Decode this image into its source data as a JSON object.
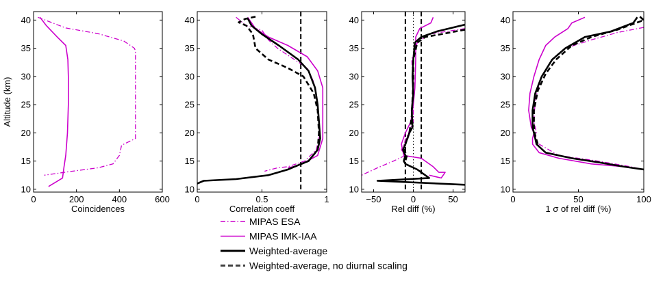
{
  "chart_data": [
    {
      "type": "line",
      "xlabel": "Coincidences",
      "ylabel": "Altitude (km)",
      "xlim": [
        0,
        600
      ],
      "ylim": [
        9.5,
        41.5
      ],
      "xticks": [
        "0",
        "200",
        "400",
        "600"
      ],
      "yticks": [
        "10",
        "15",
        "20",
        "25",
        "30",
        "35",
        "40"
      ],
      "vlines": [],
      "series": [
        {
          "name": "MIPAS ESA",
          "color": "#cc00cc",
          "dash": "dashdot",
          "width": 1.3,
          "points": [
            [
              20,
              40.5
            ],
            [
              150,
              38.6
            ],
            [
              300,
              37.6
            ],
            [
              420,
              36.3
            ],
            [
              470,
              35
            ],
            [
              475,
              34.5
            ],
            [
              475,
              30
            ],
            [
              475,
              25
            ],
            [
              475,
              19
            ],
            [
              410,
              17.8
            ],
            [
              400,
              16
            ],
            [
              370,
              14.5
            ],
            [
              300,
              13.8
            ],
            [
              180,
              13.2
            ],
            [
              50,
              12.5
            ]
          ]
        },
        {
          "name": "MIPAS IMK-IAA",
          "color": "#cc00cc",
          "dash": "solid",
          "width": 1.6,
          "points": [
            [
              30,
              40.5
            ],
            [
              60,
              39
            ],
            [
              110,
              37
            ],
            [
              150,
              35.5
            ],
            [
              160,
              33
            ],
            [
              162,
              30
            ],
            [
              162,
              25
            ],
            [
              158,
              20
            ],
            [
              150,
              16
            ],
            [
              142,
              14
            ],
            [
              135,
              12
            ],
            [
              70,
              10.5
            ]
          ]
        }
      ]
    },
    {
      "type": "line",
      "xlabel": "Correlation coeff",
      "ylabel": "",
      "xlim": [
        0,
        1
      ],
      "ylim": [
        9.5,
        41.5
      ],
      "xticks": [
        "0",
        "0.5",
        "1"
      ],
      "yticks": [
        "10",
        "15",
        "20",
        "25",
        "30",
        "35",
        "40"
      ],
      "vlines": [
        {
          "x": 0.8,
          "style": "dashed",
          "color": "#000000"
        }
      ],
      "series": [
        {
          "name": "MIPAS ESA",
          "color": "#cc00cc",
          "dash": "dashdot",
          "width": 1.3,
          "points": [
            [
              0.3,
              40.5
            ],
            [
              0.38,
              39
            ],
            [
              0.5,
              38.2
            ],
            [
              0.55,
              36.5
            ],
            [
              0.62,
              35
            ],
            [
              0.75,
              33
            ],
            [
              0.85,
              31.5
            ],
            [
              0.9,
              29
            ],
            [
              0.93,
              25
            ],
            [
              0.95,
              20
            ],
            [
              0.92,
              17
            ],
            [
              0.83,
              15
            ],
            [
              0.7,
              14
            ],
            [
              0.62,
              13.8
            ],
            [
              0.52,
              13.2
            ]
          ]
        },
        {
          "name": "MIPAS IMK-IAA",
          "color": "#cc00cc",
          "dash": "solid",
          "width": 1.6,
          "points": [
            [
              0.39,
              40.5
            ],
            [
              0.45,
              38.5
            ],
            [
              0.55,
              37
            ],
            [
              0.7,
              35.5
            ],
            [
              0.85,
              33.5
            ],
            [
              0.93,
              31
            ],
            [
              0.97,
              28
            ],
            [
              0.97,
              24
            ],
            [
              0.97,
              19
            ],
            [
              0.93,
              16
            ],
            [
              0.85,
              15
            ],
            [
              0.78,
              14.2
            ],
            [
              0.7,
              13.8
            ]
          ]
        },
        {
          "name": "Weighted-average",
          "color": "#000000",
          "dash": "solid",
          "width": 2.6,
          "points": [
            [
              0.39,
              40.3
            ],
            [
              0.42,
              39
            ],
            [
              0.5,
              37.5
            ],
            [
              0.63,
              35.5
            ],
            [
              0.78,
              33
            ],
            [
              0.86,
              31
            ],
            [
              0.91,
              28
            ],
            [
              0.93,
              25
            ],
            [
              0.94,
              22
            ],
            [
              0.95,
              19
            ],
            [
              0.93,
              17
            ],
            [
              0.86,
              15
            ],
            [
              0.75,
              14
            ],
            [
              0.7,
              13.5
            ],
            [
              0.55,
              12.5
            ],
            [
              0.3,
              11.8
            ],
            [
              0.05,
              11.5
            ],
            [
              0.0,
              11
            ]
          ]
        },
        {
          "name": "Weighted-average, no diurnal scaling",
          "color": "#000000",
          "dash": "dashed",
          "width": 2.6,
          "points": [
            [
              0.45,
              40.6
            ],
            [
              0.37,
              40.2
            ],
            [
              0.32,
              39.6
            ],
            [
              0.38,
              39
            ],
            [
              0.43,
              37.5
            ],
            [
              0.45,
              35
            ],
            [
              0.55,
              33
            ],
            [
              0.7,
              31.5
            ],
            [
              0.82,
              30
            ],
            [
              0.9,
              27
            ],
            [
              0.93,
              24
            ],
            [
              0.94,
              20
            ],
            [
              0.93,
              17
            ],
            [
              0.86,
              15
            ],
            [
              0.75,
              14
            ]
          ]
        }
      ]
    },
    {
      "type": "line",
      "xlabel": "Rel diff (%)",
      "ylabel": "",
      "xlim": [
        -65,
        65
      ],
      "ylim": [
        9.5,
        41.5
      ],
      "xticks": [
        "−50",
        "0",
        "50"
      ],
      "yticks": [
        "10",
        "15",
        "20",
        "25",
        "30",
        "35",
        "40"
      ],
      "vlines": [
        {
          "x": -10,
          "style": "dashed",
          "color": "#000000"
        },
        {
          "x": 10,
          "style": "dashed",
          "color": "#000000"
        },
        {
          "x": 0,
          "style": "dotted",
          "color": "#000000"
        }
      ],
      "series": [
        {
          "name": "MIPAS ESA",
          "color": "#cc00cc",
          "dash": "dashdot",
          "width": 1.3,
          "points": [
            [
              65,
              38.5
            ],
            [
              20,
              37.5
            ],
            [
              5,
              36
            ],
            [
              -2,
              33
            ],
            [
              0,
              28
            ],
            [
              0,
              22
            ],
            [
              -6,
              20
            ],
            [
              -12,
              18
            ],
            [
              -15,
              17
            ],
            [
              -10,
              16
            ],
            [
              -25,
              15
            ],
            [
              -45,
              13.8
            ],
            [
              -65,
              12.5
            ]
          ]
        },
        {
          "name": "MIPAS IMK-IAA",
          "color": "#cc00cc",
          "dash": "solid",
          "width": 1.6,
          "points": [
            [
              25,
              40.5
            ],
            [
              22,
              39.5
            ],
            [
              8,
              38.5
            ],
            [
              3,
              37
            ],
            [
              3,
              33
            ],
            [
              2,
              28
            ],
            [
              0,
              25
            ],
            [
              -3,
              22
            ],
            [
              -10,
              20
            ],
            [
              -15,
              18
            ],
            [
              -12,
              16
            ],
            [
              10,
              15.5
            ],
            [
              25,
              14
            ],
            [
              32,
              13
            ],
            [
              40,
              13
            ],
            [
              35,
              12
            ],
            [
              20,
              12.5
            ]
          ]
        },
        {
          "name": "Weighted-average",
          "color": "#000000",
          "dash": "solid",
          "width": 2.6,
          "points": [
            [
              65,
              39.2
            ],
            [
              30,
              38
            ],
            [
              10,
              37
            ],
            [
              2,
              36
            ],
            [
              0,
              33
            ],
            [
              -1,
              30
            ],
            [
              0,
              27
            ],
            [
              -2,
              24
            ],
            [
              -1,
              21
            ],
            [
              -5,
              20
            ],
            [
              -10,
              18
            ],
            [
              -13,
              17
            ],
            [
              -10,
              16
            ],
            [
              -12,
              15
            ],
            [
              -10,
              14.5
            ],
            [
              5,
              13.5
            ],
            [
              20,
              12
            ],
            [
              -45,
              11.5
            ],
            [
              65,
              10.8
            ]
          ]
        },
        {
          "name": "Weighted-average, no diurnal scaling",
          "color": "#000000",
          "dash": "dashed",
          "width": 2.6,
          "points": [
            [
              65,
              38.3
            ],
            [
              35,
              37.5
            ],
            [
              15,
              37
            ],
            [
              5,
              36
            ],
            [
              0,
              33
            ],
            [
              0,
              29
            ],
            [
              -1,
              26
            ],
            [
              -2,
              23
            ],
            [
              -5,
              20
            ],
            [
              -10,
              18
            ],
            [
              -12,
              17
            ],
            [
              -8,
              16
            ],
            [
              -10,
              15
            ]
          ]
        }
      ]
    },
    {
      "type": "line",
      "xlabel": "1 σ of rel diff (%)",
      "ylabel": "",
      "xlim": [
        0,
        100
      ],
      "ylim": [
        9.5,
        41.5
      ],
      "xticks": [
        "0",
        "50",
        "100"
      ],
      "yticks": [
        "10",
        "15",
        "20",
        "25",
        "30",
        "35",
        "40"
      ],
      "vlines": [],
      "series": [
        {
          "name": "MIPAS ESA",
          "color": "#cc00cc",
          "dash": "dashdot",
          "width": 1.3,
          "points": [
            [
              100,
              38.7
            ],
            [
              80,
              37.8
            ],
            [
              60,
              36.5
            ],
            [
              40,
              35
            ],
            [
              30,
              33
            ],
            [
              22,
              30
            ],
            [
              17,
              26
            ],
            [
              16,
              22
            ],
            [
              18,
              20
            ],
            [
              17,
              19
            ],
            [
              20,
              18
            ],
            [
              35,
              16
            ],
            [
              65,
              15
            ],
            [
              90,
              14
            ],
            [
              100,
              13.5
            ]
          ]
        },
        {
          "name": "MIPAS IMK-IAA",
          "color": "#cc00cc",
          "dash": "solid",
          "width": 1.6,
          "points": [
            [
              55,
              40.5
            ],
            [
              45,
              39.5
            ],
            [
              42,
              38.5
            ],
            [
              32,
              37
            ],
            [
              25,
              35.5
            ],
            [
              20,
              33
            ],
            [
              16,
              30
            ],
            [
              13,
              27
            ],
            [
              12,
              24
            ],
            [
              14,
              21
            ],
            [
              16,
              20
            ],
            [
              15,
              19
            ],
            [
              15,
              18
            ],
            [
              20,
              16.5
            ],
            [
              35,
              15.5
            ],
            [
              60,
              14.5
            ],
            [
              85,
              14
            ],
            [
              100,
              13.5
            ]
          ]
        },
        {
          "name": "Weighted-average",
          "color": "#000000",
          "dash": "solid",
          "width": 2.6,
          "points": [
            [
              95,
              40.5
            ],
            [
              92,
              39.5
            ],
            [
              75,
              38
            ],
            [
              55,
              37
            ],
            [
              40,
              35
            ],
            [
              30,
              33
            ],
            [
              22,
              30
            ],
            [
              17,
              27
            ],
            [
              15,
              24
            ],
            [
              15,
              21
            ],
            [
              16,
              20
            ],
            [
              17,
              19
            ],
            [
              18,
              18
            ],
            [
              25,
              16.5
            ],
            [
              45,
              15.5
            ],
            [
              65,
              14.8
            ],
            [
              85,
              14
            ],
            [
              100,
              13.5
            ]
          ]
        },
        {
          "name": "Weighted-average, no diurnal scaling",
          "color": "#000000",
          "dash": "dashed",
          "width": 2.6,
          "points": [
            [
              97,
              40.6
            ],
            [
              100,
              40
            ],
            [
              80,
              38.3
            ],
            [
              60,
              37
            ],
            [
              45,
              35.5
            ],
            [
              33,
              33
            ],
            [
              25,
              30.5
            ],
            [
              19,
              27.5
            ],
            [
              16,
              24
            ],
            [
              16,
              21
            ],
            [
              17,
              19.5
            ],
            [
              19,
              18
            ]
          ]
        }
      ]
    }
  ],
  "legend": {
    "entries": [
      {
        "label": "MIPAS ESA",
        "color": "#cc00cc",
        "dash": "dashdot"
      },
      {
        "label": "MIPAS IMK-IAA",
        "color": "#cc00cc",
        "dash": "solid"
      },
      {
        "label": "Weighted-average",
        "color": "#000000",
        "dash": "solid"
      },
      {
        "label": "Weighted-average, no diurnal scaling",
        "color": "#404040",
        "dash": "dashed"
      }
    ]
  }
}
